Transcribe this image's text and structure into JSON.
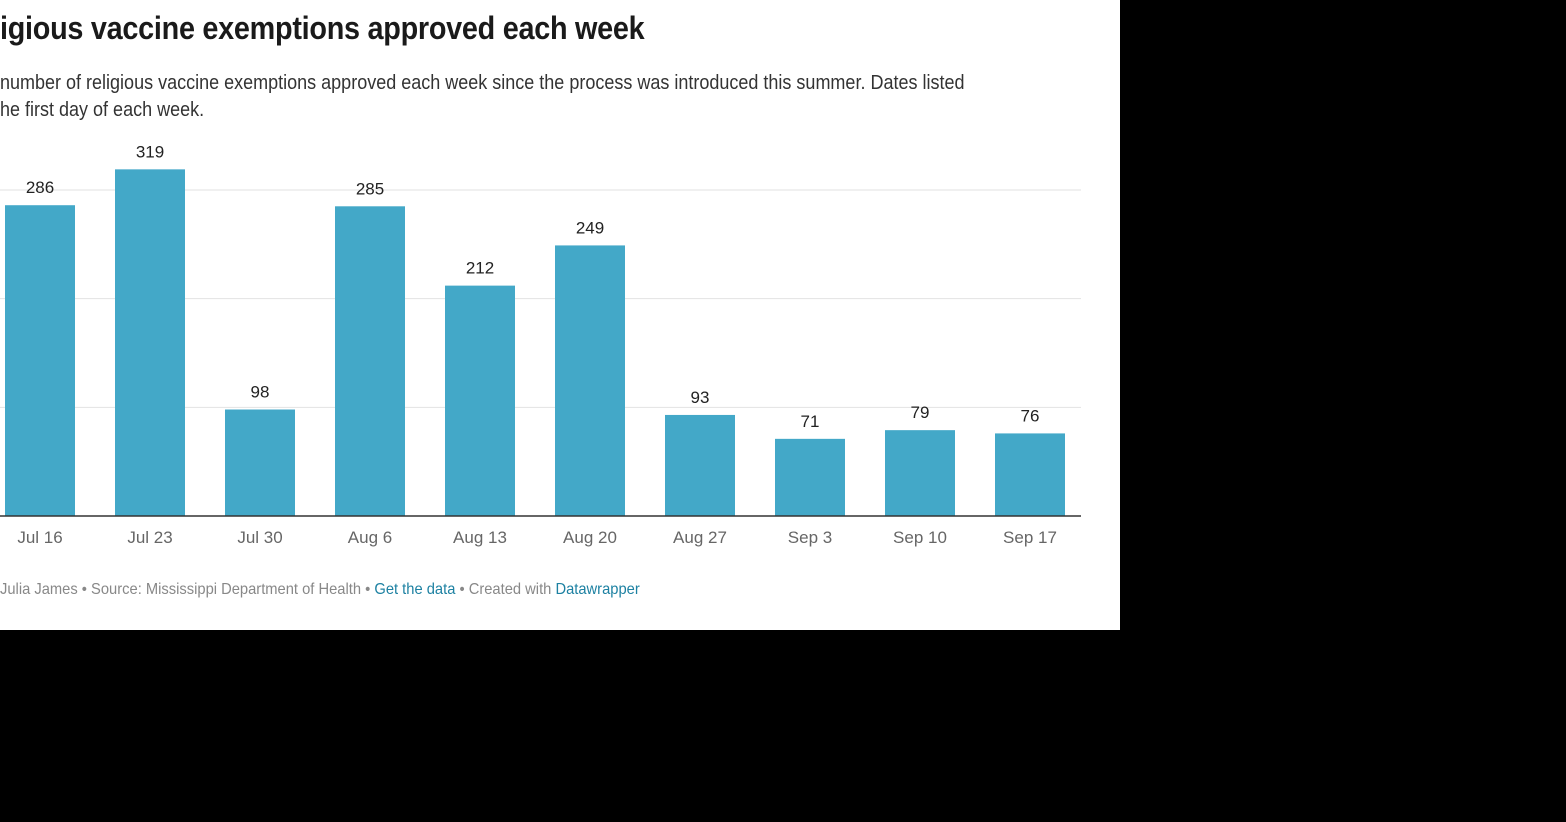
{
  "title": "igious vaccine exemptions approved each week",
  "subtitle": {
    "line1": "number of religious vaccine exemptions approved each week since the process was introduced this summer. Dates listed",
    "line2": "he first day of each week."
  },
  "chart_data": {
    "type": "bar",
    "categories": [
      "Jul 16",
      "Jul 23",
      "Jul 30",
      "Aug 6",
      "Aug 13",
      "Aug 20",
      "Aug 27",
      "Sep 3",
      "Sep 10",
      "Sep 17"
    ],
    "values": [
      286,
      319,
      98,
      285,
      212,
      249,
      93,
      71,
      79,
      76
    ],
    "ylim": [
      0,
      330
    ],
    "gridlines": [
      100,
      200,
      300
    ],
    "grid": true,
    "bar_color": "#43a8c8",
    "data_labels": true
  },
  "footer": {
    "credit": "Julia James • Source: Mississippi Department of Health • ",
    "get_data": "Get the data",
    "sep": " • Created with ",
    "datawrapper": "Datawrapper"
  },
  "colors": {
    "link": "#1d81a2",
    "background_outside": "#000000"
  }
}
